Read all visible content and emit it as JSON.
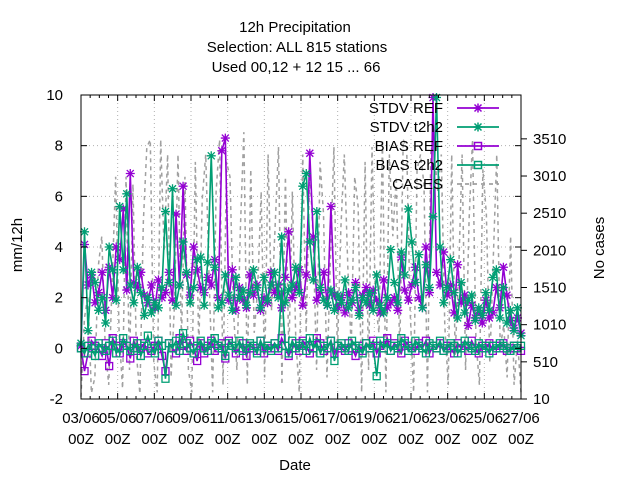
{
  "chart_data": {
    "type": "line",
    "title_lines": [
      "12h Precipitation",
      "Selection: ALL     815 stations",
      "Used  00,12  + 12 15 ... 66"
    ],
    "xlabel": "Date",
    "ylabel": "mm/12h",
    "y2label": "No cases",
    "x_range": [
      "03/06 00Z",
      "27/06 00Z"
    ],
    "ylim": [
      -2,
      10
    ],
    "y_ticks": [
      "-2",
      "0",
      "2",
      "4",
      "6",
      "8",
      "10"
    ],
    "y2lim": [
      10,
      4100
    ],
    "y2_ticks": [
      "10",
      "510",
      "1010",
      "1510",
      "2010",
      "2510",
      "3010",
      "3510"
    ],
    "x_ticks": [
      {
        "line1": "03/06",
        "line2": "00Z"
      },
      {
        "line1": "05/06",
        "line2": "00Z"
      },
      {
        "line1": "07/06",
        "line2": "00Z"
      },
      {
        "line1": "09/06",
        "line2": "00Z"
      },
      {
        "line1": "11/06",
        "line2": "00Z"
      },
      {
        "line1": "13/06",
        "line2": "00Z"
      },
      {
        "line1": "15/06",
        "line2": "00Z"
      },
      {
        "line1": "17/06",
        "line2": "00Z"
      },
      {
        "line1": "19/06",
        "line2": "00Z"
      },
      {
        "line1": "21/06",
        "line2": "00Z"
      },
      {
        "line1": "23/06",
        "line2": "00Z"
      },
      {
        "line1": "25/06",
        "line2": "00Z"
      },
      {
        "line1": "27/06",
        "line2": "00Z"
      }
    ],
    "grid": true,
    "legend_position": "top-right",
    "series": [
      {
        "name": "STDV REF",
        "axis": "y",
        "color": "#9400d3",
        "marker": "star",
        "dash": "",
        "values": [
          0.1,
          4.1,
          2.5,
          2.9,
          1.8,
          2.2,
          3.0,
          1.5,
          3.2,
          2.0,
          4.0,
          3.5,
          5.5,
          2.3,
          6.9,
          2.6,
          2.4,
          3.0,
          2.1,
          1.8,
          2.5,
          1.6,
          2.7,
          2.0,
          2.2,
          3.0,
          1.9,
          5.3,
          2.5,
          6.4,
          2.9,
          2.1,
          4.0,
          3.1,
          2.4,
          2.2,
          2.8,
          2.5,
          3.5,
          2.0,
          7.8,
          8.3,
          1.9,
          3.1,
          1.5,
          2.4,
          1.9,
          1.6,
          2.9,
          2.1,
          2.5,
          1.5,
          2.0,
          1.8,
          3.0,
          2.2,
          2.5,
          1.6,
          2.8,
          4.6,
          2.0,
          2.4,
          3.1,
          1.7,
          2.9,
          7.7,
          4.4,
          1.9,
          2.2,
          3.0,
          1.7,
          5.6,
          2.1,
          1.6,
          2.0,
          1.4,
          2.2,
          1.8,
          2.6,
          1.5,
          2.1,
          2.4,
          1.7,
          2.3,
          1.9,
          1.4,
          2.7,
          1.6,
          1.8,
          2.0,
          1.5,
          3.6,
          2.3,
          1.9,
          2.5,
          3.2,
          2.0,
          1.6,
          4.0,
          2.2,
          9.9,
          3.0,
          2.5,
          3.8,
          2.1,
          2.5,
          1.4,
          3.3,
          1.8,
          2.1,
          0.9,
          1.7,
          1.2,
          1.5,
          1.0,
          1.9,
          1.2,
          1.4,
          2.4,
          1.6,
          3.2,
          2.1,
          1.1,
          0.8,
          1.2,
          0.6
        ]
      },
      {
        "name": "STDV t2h2",
        "axis": "y",
        "color": "#009e73",
        "marker": "star",
        "dash": "",
        "values": [
          0.2,
          4.6,
          0.7,
          3.0,
          2.6,
          1.5,
          2.0,
          1.0,
          4.0,
          3.1,
          1.9,
          5.6,
          3.1,
          6.1,
          2.5,
          1.8,
          3.2,
          2.2,
          1.3,
          2.0,
          1.4,
          1.8,
          1.6,
          2.4,
          5.4,
          2.6,
          6.3,
          1.7,
          2.5,
          4.2,
          3.0,
          1.8,
          2.4,
          3.5,
          3.6,
          1.7,
          3.4,
          7.6,
          3.2,
          1.6,
          1.8,
          2.9,
          2.1,
          1.5,
          2.8,
          2.0,
          2.3,
          1.7,
          2.2,
          3.1,
          2.4,
          1.6,
          2.8,
          1.9,
          2.5,
          3.0,
          2.0,
          4.4,
          1.8,
          2.3,
          2.5,
          3.2,
          2.2,
          6.4,
          6.9,
          4.2,
          2.7,
          5.4,
          2.4,
          1.9,
          1.7,
          2.3,
          1.5,
          2.1,
          1.8,
          2.7,
          1.6,
          1.9,
          2.4,
          1.3,
          2.0,
          1.8,
          2.2,
          1.5,
          2.9,
          1.7,
          1.4,
          2.0,
          3.9,
          2.6,
          1.8,
          3.8,
          2.9,
          5.5,
          4.2,
          2.6,
          3.7,
          1.6,
          3.3,
          2.4,
          5.2,
          9.9,
          4.0,
          1.8,
          2.4,
          3.5,
          2.2,
          1.2,
          2.6,
          1.4,
          1.9,
          2.1,
          1.1,
          1.6,
          1.3,
          2.2,
          1.5,
          2.8,
          3.1,
          1.2,
          2.4,
          1.0,
          1.5,
          0.7,
          1.6,
          0.5
        ]
      },
      {
        "name": "BIAS REF",
        "axis": "y",
        "color": "#9400d3",
        "marker": "square",
        "dash": "",
        "values": [
          0.0,
          -0.9,
          -0.2,
          0.3,
          0.1,
          0.0,
          -0.3,
          0.2,
          -0.7,
          0.4,
          0.1,
          -0.2,
          0.2,
          0.1,
          -0.4,
          0.3,
          -0.1,
          0.0,
          0.2,
          -0.2,
          -0.1,
          0.1,
          0.3,
          -0.3,
          -0.9,
          0.2,
          0.0,
          -0.2,
          0.4,
          0.1,
          -0.1,
          0.3,
          0.0,
          -0.5,
          0.2,
          -0.2,
          0.1,
          0.3,
          -0.1,
          0.0,
          0.2,
          -0.4,
          0.3,
          0.1,
          -0.2,
          0.0,
          0.2,
          -0.3,
          0.1,
          0.0,
          -0.1,
          0.3,
          -0.2,
          0.1,
          0.0,
          0.2,
          -0.1,
          0.4,
          0.1,
          -0.3,
          0.0,
          0.2,
          -0.1,
          0.3,
          0.1,
          -0.2,
          0.0,
          0.4,
          0.2,
          -0.1,
          0.0,
          0.3,
          -0.2,
          0.1,
          0.0,
          -0.1,
          0.2,
          0.0,
          -0.3,
          0.1,
          -0.1,
          0.2,
          0.0,
          0.3,
          -0.2,
          0.1,
          0.0,
          0.4,
          -0.1,
          0.2,
          0.0,
          -0.2,
          0.3,
          0.1,
          0.0,
          -0.1,
          0.2,
          0.0,
          0.3,
          -0.2,
          0.1,
          0.0,
          0.2,
          -0.1,
          0.1,
          0.0,
          -0.2,
          0.2,
          0.0,
          0.1,
          -0.1,
          0.3,
          0.0,
          -0.2,
          0.1,
          0.0,
          0.2,
          -0.1,
          0.1,
          0.0,
          0.2,
          -0.1,
          0.0,
          0.1,
          0.0,
          -0.1
        ]
      },
      {
        "name": "BIAS t2h2",
        "axis": "y",
        "color": "#009e73",
        "marker": "square",
        "dash": "",
        "values": [
          0.0,
          -0.2,
          0.1,
          0.0,
          -0.3,
          0.2,
          0.0,
          -0.1,
          0.1,
          0.3,
          -0.2,
          0.0,
          0.4,
          0.1,
          -0.1,
          0.0,
          0.2,
          -0.3,
          0.1,
          0.5,
          0.0,
          -0.2,
          0.3,
          0.1,
          -1.2,
          0.2,
          0.0,
          0.3,
          -0.1,
          0.6,
          0.2,
          0.0,
          -0.2,
          0.1,
          0.3,
          0.0,
          -0.1,
          0.2,
          0.4,
          0.1,
          0.0,
          -0.3,
          0.2,
          0.1,
          0.0,
          0.3,
          -0.1,
          0.0,
          0.2,
          0.1,
          -0.2,
          0.3,
          0.0,
          0.1,
          -0.1,
          0.2,
          0.0,
          2.4,
          0.1,
          -0.2,
          0.3,
          0.0,
          0.1,
          0.2,
          -0.1,
          0.4,
          0.0,
          0.2,
          -0.2,
          0.1,
          0.0,
          0.3,
          -0.5,
          0.1,
          0.2,
          0.0,
          -0.1,
          0.3,
          0.1,
          0.0,
          -0.2,
          0.2,
          0.0,
          0.1,
          -1.1,
          0.3,
          0.0,
          0.2,
          -0.1,
          0.1,
          0.0,
          0.4,
          0.2,
          -0.1,
          0.0,
          0.3,
          0.1,
          0.0,
          -0.2,
          0.2,
          0.1,
          0.0,
          0.3,
          -0.1,
          0.0,
          0.2,
          0.1,
          -0.2,
          0.0,
          0.3,
          0.1,
          0.0,
          -0.1,
          0.2,
          0.0,
          0.1,
          -0.2,
          0.1,
          0.0,
          0.2,
          0.1,
          0.0,
          -0.1,
          0.1,
          0.0,
          0.1
        ]
      },
      {
        "name": "CASES",
        "axis": "y2",
        "color": "#a0a0a0",
        "marker": "",
        "dash": "4,4",
        "values": [
          40,
          1100,
          1400,
          90,
          300,
          1800,
          2200,
          700,
          200,
          1600,
          3000,
          900,
          150,
          3000,
          400,
          2900,
          600,
          80,
          2400,
          3400,
          3500,
          500,
          100,
          3500,
          2000,
          3300,
          300,
          1300,
          3300,
          800,
          3000,
          400,
          100,
          3200,
          700,
          2700,
          3300,
          1600,
          100,
          2800,
          3500,
          200,
          3200,
          3000,
          1200,
          400,
          2300,
          3600,
          200,
          3100,
          900,
          1500,
          2800,
          300,
          3300,
          1200,
          2300,
          3400,
          200,
          3000,
          600,
          2800,
          800,
          100,
          3300,
          900,
          3100,
          2200,
          400,
          3200,
          2500,
          300,
          1900,
          3400,
          600,
          2300,
          3300,
          1800,
          700,
          3000,
          2600,
          100,
          3200,
          400,
          3400,
          1300,
          900,
          3500,
          100,
          3300,
          2200,
          3000,
          600,
          3500,
          3400,
          1200,
          100,
          3100,
          3300,
          2900,
          100,
          3400,
          3300,
          2800,
          3300,
          1000,
          200,
          3300,
          600,
          1700,
          3300,
          400,
          2400,
          3500,
          800,
          200,
          3100,
          2500,
          500,
          1900,
          3300,
          700,
          1000,
          300,
          2200,
          200,
          800,
          100
        ]
      }
    ]
  }
}
